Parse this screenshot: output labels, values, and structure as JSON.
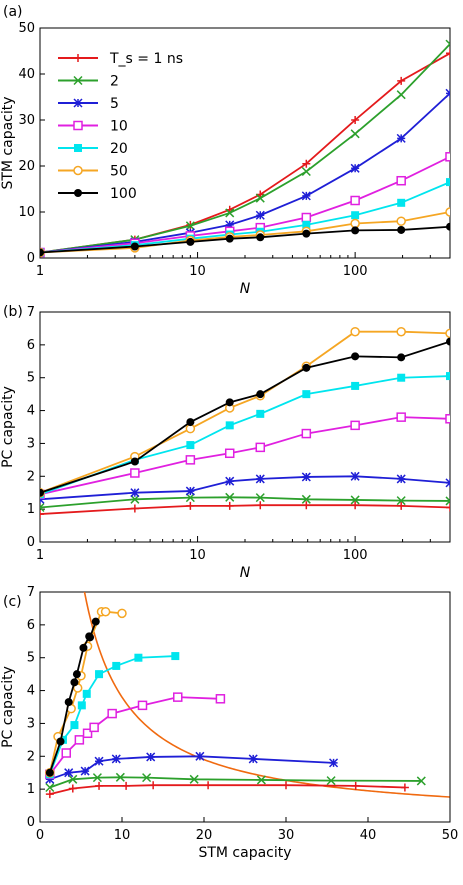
{
  "chart_data": [
    {
      "panel": "(a)",
      "type": "line",
      "xscale": "log",
      "xlim": [
        1,
        400
      ],
      "ylim": [
        0,
        50
      ],
      "xlabel": "N",
      "ylabel": "STM capacity",
      "xticks": [
        "1",
        "10",
        "100"
      ],
      "yticks": [
        "0",
        "10",
        "20",
        "30",
        "40",
        "50"
      ],
      "legend_placement": "top-left",
      "x": [
        1,
        4,
        9,
        16,
        25,
        49,
        100,
        196,
        400
      ],
      "series": [
        {
          "name": "T_s = 1 ns",
          "color": "#e41a1c",
          "marker": "plus",
          "values": [
            1.2,
            4.0,
            7.2,
            10.5,
            13.8,
            20.5,
            30.0,
            38.5,
            44.5
          ]
        },
        {
          "name": "2",
          "color": "#2ca02c",
          "marker": "x",
          "values": [
            1.2,
            4.0,
            7.0,
            9.8,
            13.0,
            18.8,
            27.0,
            35.5,
            46.5
          ]
        },
        {
          "name": "5",
          "color": "#1f1fd6",
          "marker": "star",
          "values": [
            1.2,
            3.5,
            5.5,
            7.2,
            9.3,
            13.5,
            19.5,
            26.0,
            35.8
          ]
        },
        {
          "name": "10",
          "color": "#e020e0",
          "marker": "open-square",
          "values": [
            1.2,
            3.2,
            4.8,
            5.8,
            6.6,
            8.8,
            12.5,
            16.8,
            22.0
          ]
        },
        {
          "name": "20",
          "color": "#00e5ee",
          "marker": "square",
          "values": [
            1.2,
            2.8,
            4.2,
            5.1,
            5.7,
            7.2,
            9.3,
            12.0,
            16.5
          ]
        },
        {
          "name": "50",
          "color": "#f5a623",
          "marker": "open-circle",
          "values": [
            1.2,
            2.2,
            3.8,
            4.6,
            5.0,
            5.8,
            7.5,
            8.0,
            10.0
          ]
        },
        {
          "name": "100",
          "color": "#000000",
          "marker": "circle",
          "values": [
            1.2,
            2.5,
            3.5,
            4.2,
            4.5,
            5.3,
            6.0,
            6.1,
            6.8
          ]
        }
      ]
    },
    {
      "panel": "(b)",
      "type": "line",
      "xscale": "log",
      "xlim": [
        1,
        400
      ],
      "ylim": [
        0,
        7
      ],
      "xlabel": "N",
      "ylabel": "PC capacity",
      "xticks": [
        "1",
        "10",
        "100"
      ],
      "yticks": [
        "0",
        "1",
        "2",
        "3",
        "4",
        "5",
        "6",
        "7"
      ],
      "x": [
        1,
        4,
        9,
        16,
        25,
        49,
        100,
        196,
        400
      ],
      "series": [
        {
          "name": "T_s = 1 ns",
          "values": [
            0.85,
            1.02,
            1.1,
            1.1,
            1.12,
            1.12,
            1.12,
            1.1,
            1.05
          ]
        },
        {
          "name": "2",
          "values": [
            1.05,
            1.3,
            1.35,
            1.36,
            1.35,
            1.3,
            1.28,
            1.26,
            1.25
          ]
        },
        {
          "name": "5",
          "values": [
            1.3,
            1.5,
            1.55,
            1.85,
            1.92,
            1.98,
            2.0,
            1.92,
            1.8
          ]
        },
        {
          "name": "10",
          "values": [
            1.45,
            2.1,
            2.5,
            2.7,
            2.88,
            3.3,
            3.55,
            3.8,
            3.75
          ]
        },
        {
          "name": "20",
          "values": [
            1.45,
            2.5,
            2.95,
            3.55,
            3.9,
            4.5,
            4.75,
            5.0,
            5.05
          ]
        },
        {
          "name": "50",
          "values": [
            1.5,
            2.6,
            3.45,
            4.08,
            4.45,
            5.35,
            6.4,
            6.4,
            6.35
          ]
        },
        {
          "name": "100",
          "values": [
            1.5,
            2.45,
            3.65,
            4.25,
            4.5,
            5.3,
            5.65,
            5.62,
            6.1
          ]
        }
      ]
    },
    {
      "panel": "(c)",
      "type": "scatter",
      "xlim": [
        0,
        50
      ],
      "ylim": [
        0,
        7
      ],
      "xlabel": "STM capacity",
      "ylabel": "PC capacity",
      "xticks": [
        "0",
        "10",
        "20",
        "30",
        "40",
        "50"
      ],
      "yticks": [
        "0",
        "1",
        "2",
        "3",
        "4",
        "5",
        "6",
        "7"
      ],
      "bound_curve": {
        "color": "#f06a10",
        "function": "y = 38 / x"
      },
      "series": [
        {
          "name": "T_s = 1 ns",
          "x": [
            1.2,
            4.0,
            7.2,
            10.5,
            13.8,
            20.5,
            30.0,
            38.5,
            44.5
          ],
          "y": [
            0.85,
            1.02,
            1.1,
            1.1,
            1.12,
            1.12,
            1.12,
            1.1,
            1.05
          ]
        },
        {
          "name": "2",
          "x": [
            1.2,
            4.0,
            7.0,
            9.8,
            13.0,
            18.8,
            27.0,
            35.5,
            46.5
          ],
          "y": [
            1.05,
            1.3,
            1.35,
            1.36,
            1.35,
            1.3,
            1.28,
            1.26,
            1.25
          ]
        },
        {
          "name": "5",
          "x": [
            1.2,
            3.5,
            5.5,
            7.2,
            9.3,
            13.5,
            19.5,
            26.0,
            35.8
          ],
          "y": [
            1.3,
            1.5,
            1.55,
            1.85,
            1.92,
            1.98,
            2.0,
            1.92,
            1.8
          ]
        },
        {
          "name": "10",
          "x": [
            1.2,
            3.2,
            4.8,
            5.8,
            6.6,
            8.8,
            12.5,
            16.8,
            22.0
          ],
          "y": [
            1.45,
            2.1,
            2.5,
            2.7,
            2.88,
            3.3,
            3.55,
            3.8,
            3.75
          ]
        },
        {
          "name": "20",
          "x": [
            1.2,
            2.8,
            4.2,
            5.1,
            5.7,
            7.2,
            9.3,
            12.0,
            16.5
          ],
          "y": [
            1.45,
            2.5,
            2.95,
            3.55,
            3.9,
            4.5,
            4.75,
            5.0,
            5.05
          ]
        },
        {
          "name": "50",
          "x": [
            1.2,
            2.2,
            3.8,
            4.6,
            5.0,
            5.8,
            7.5,
            8.0,
            10.0
          ],
          "y": [
            1.5,
            2.6,
            3.45,
            4.08,
            4.45,
            5.35,
            6.4,
            6.4,
            6.35
          ]
        },
        {
          "name": "100",
          "x": [
            1.2,
            2.5,
            3.5,
            4.2,
            4.5,
            5.3,
            6.0,
            6.1,
            6.8
          ],
          "y": [
            1.5,
            2.45,
            3.65,
            4.25,
            4.5,
            5.3,
            5.65,
            5.62,
            6.1
          ]
        }
      ]
    }
  ]
}
